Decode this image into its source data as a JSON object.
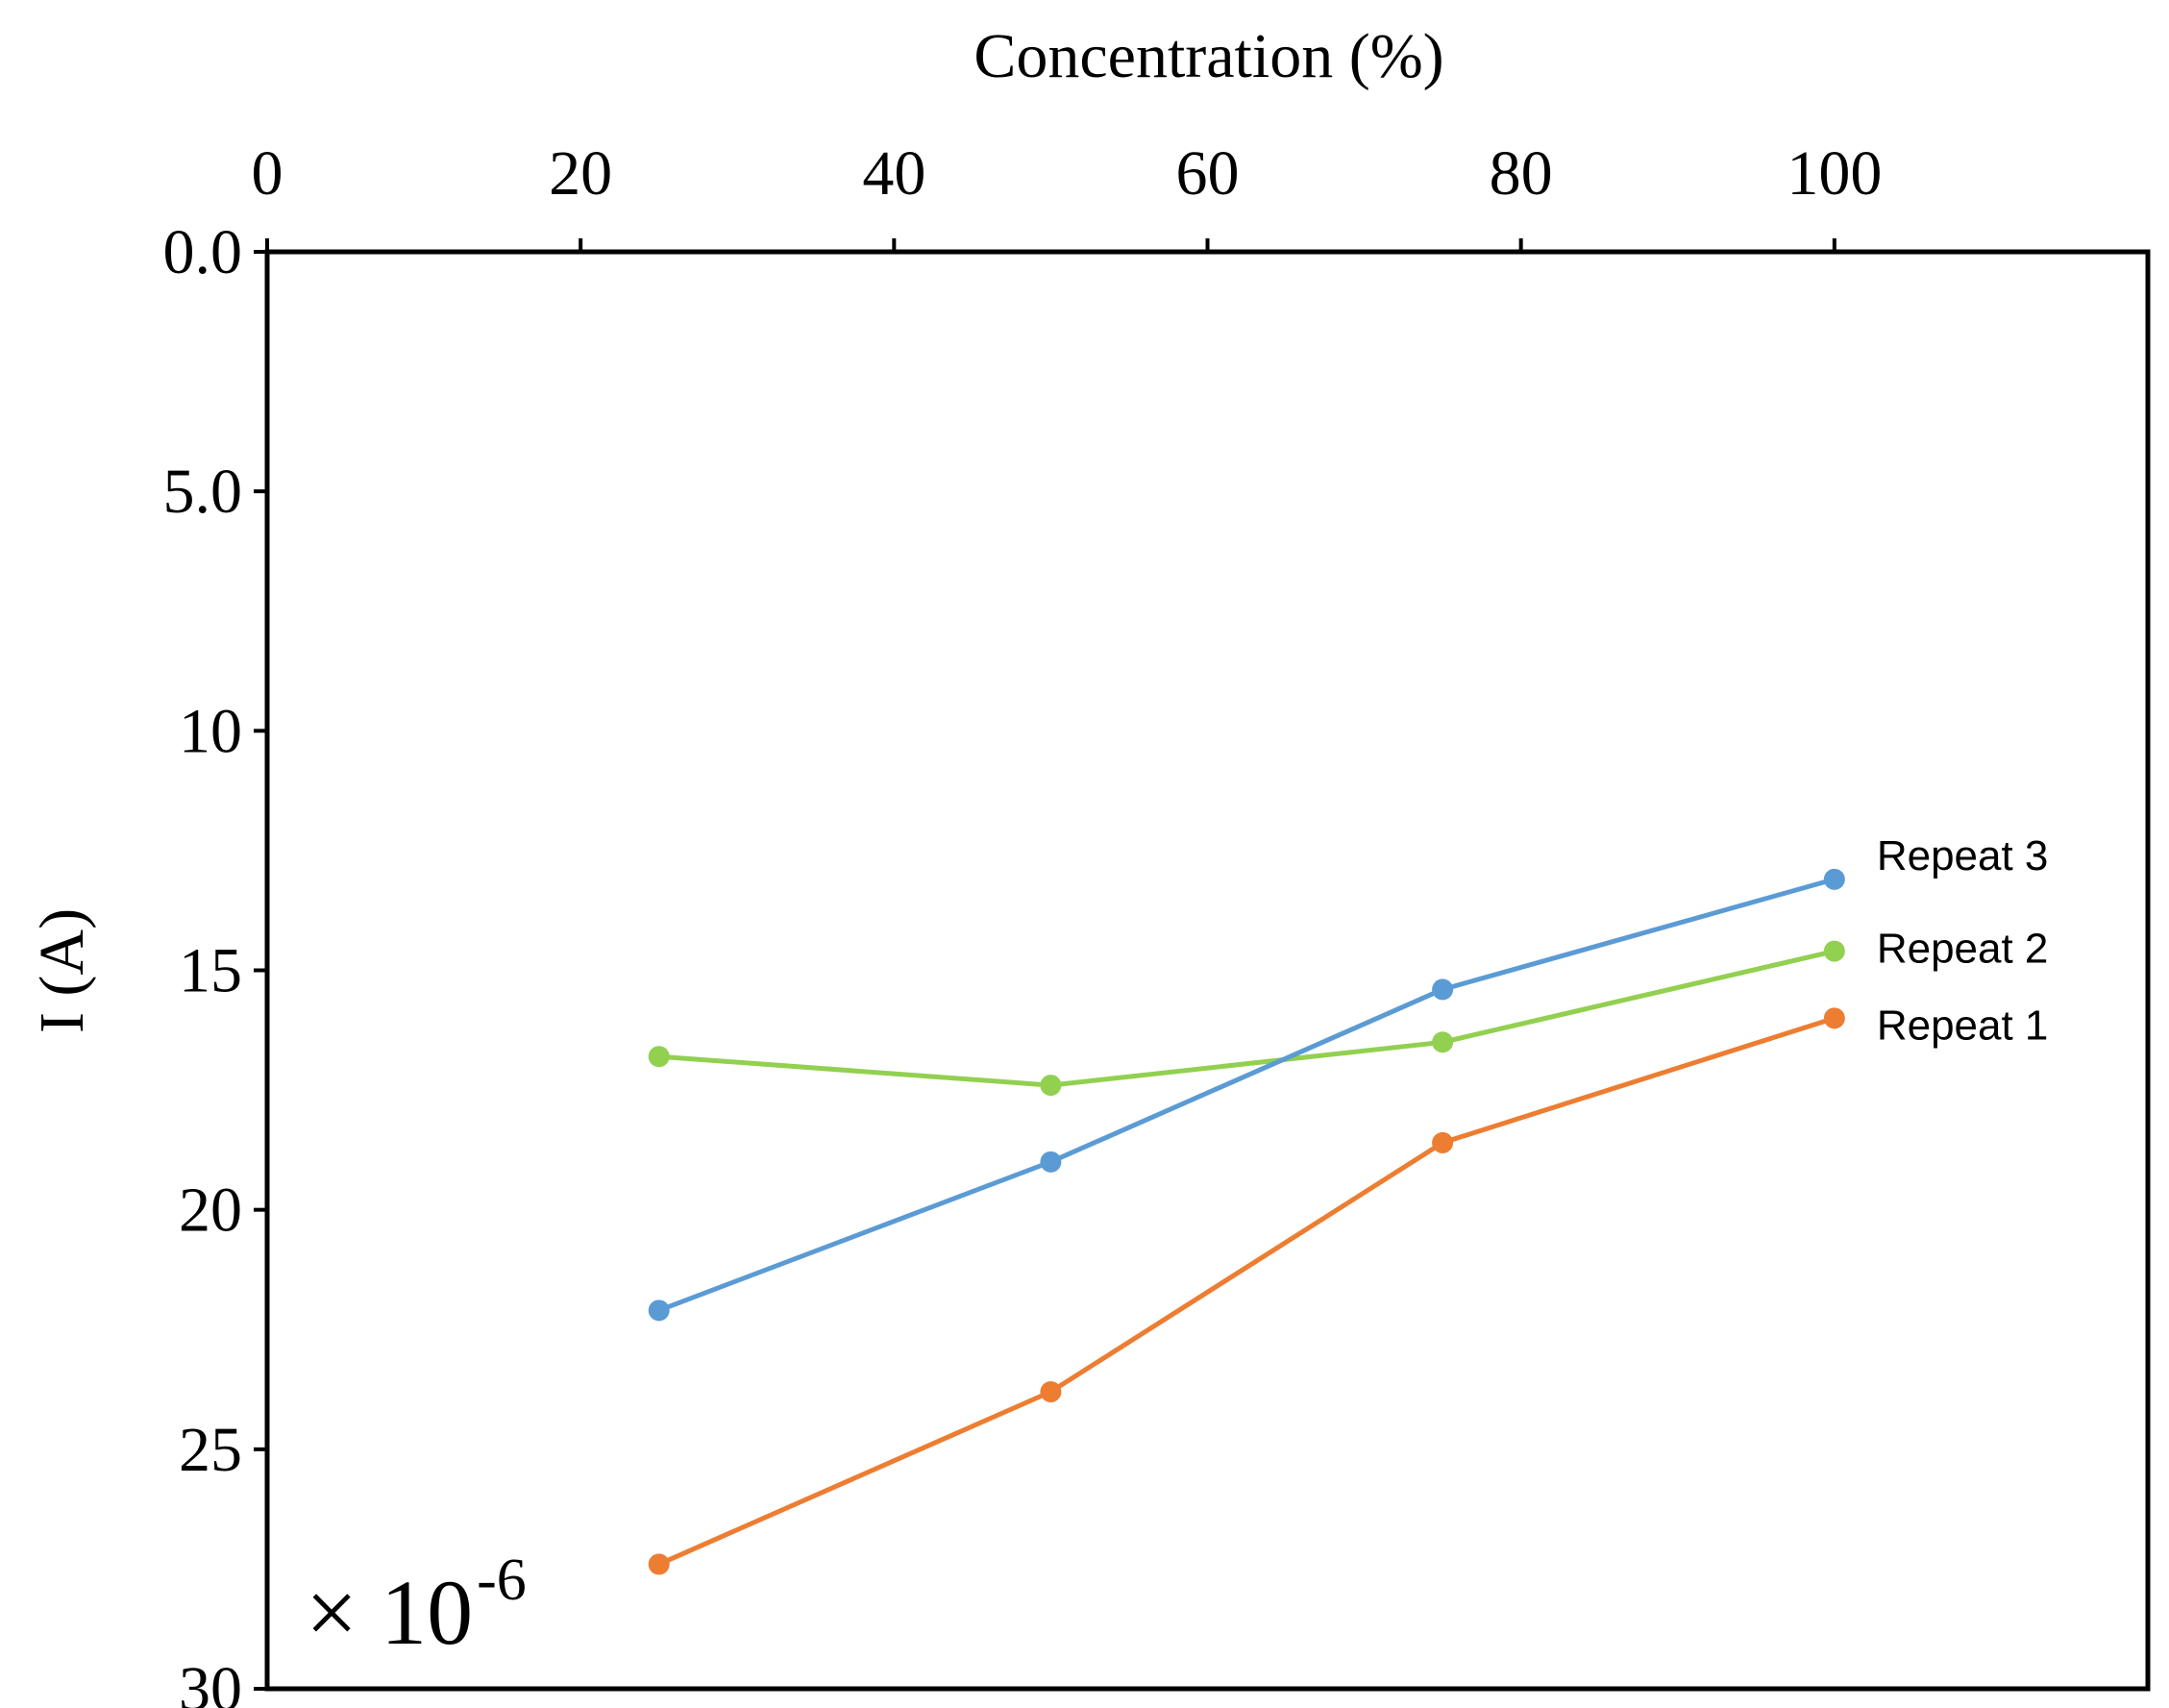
{
  "chart_data": {
    "type": "line",
    "title": "",
    "xlabel": "Concentration (%)",
    "ylabel": "I (A)",
    "multiplier": {
      "base": "× 10",
      "exponent": "-6"
    },
    "xlim": [
      0,
      120
    ],
    "ylim": [
      0,
      30
    ],
    "y_inverted": true,
    "x_axis_position": "top",
    "xticks": [
      0,
      20,
      40,
      60,
      80,
      100
    ],
    "xtick_labels": [
      "0",
      "20",
      "40",
      "60",
      "80",
      "100"
    ],
    "yticks": [
      0,
      5,
      10,
      15,
      20,
      25,
      30
    ],
    "ytick_labels": [
      "0.0",
      "5.0",
      "10",
      "15",
      "20",
      "25",
      "30"
    ],
    "grid": false,
    "legend": "inline-right",
    "x": [
      25,
      50,
      75,
      100
    ],
    "series": [
      {
        "name": "Repeat 1",
        "label": "Repeat 1",
        "color": "#ED7D31",
        "values": [
          27.4,
          23.8,
          18.6,
          16.0
        ]
      },
      {
        "name": "Repeat 2",
        "label": "Repeat 2",
        "color": "#92D050",
        "values": [
          16.8,
          17.4,
          16.5,
          14.6
        ]
      },
      {
        "name": "Repeat 3",
        "label": "Repeat 3",
        "color": "#5B9BD5",
        "values": [
          22.1,
          19.0,
          15.4,
          13.1
        ]
      }
    ]
  }
}
